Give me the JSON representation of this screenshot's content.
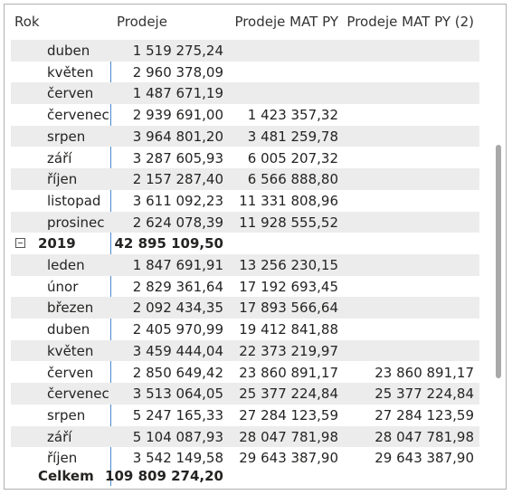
{
  "table": {
    "columns": [
      "Rok",
      "Prodeje",
      "Prodeje MAT PY",
      "Prodeje MAT PY (2)"
    ],
    "rows": [
      {
        "label": "duben",
        "values": [
          "1 519 275,24",
          null,
          null
        ]
      },
      {
        "label": "květen",
        "values": [
          "2 960 378,09",
          null,
          null
        ]
      },
      {
        "label": "červen",
        "values": [
          "1 487 671,19",
          null,
          null
        ]
      },
      {
        "label": "červenec",
        "values": [
          "2 939 691,00",
          "1 423 357,32",
          null
        ]
      },
      {
        "label": "srpen",
        "values": [
          "3 964 801,20",
          "3 481 259,78",
          null
        ]
      },
      {
        "label": "září",
        "values": [
          "3 287 605,93",
          "6 005 207,32",
          null
        ]
      },
      {
        "label": "říjen",
        "values": [
          "2 157 287,40",
          "6 566 888,80",
          null
        ]
      },
      {
        "label": "listopad",
        "values": [
          "3 611 092,23",
          "11 331 808,96",
          null
        ]
      },
      {
        "label": "prosinec",
        "values": [
          "2 624 078,39",
          "11 928 555,52",
          null
        ]
      },
      {
        "label": "2019",
        "group": true,
        "values": [
          "42 895 109,50",
          null,
          null
        ]
      },
      {
        "label": "leden",
        "values": [
          "1 847 691,91",
          "13 256 230,15",
          null
        ]
      },
      {
        "label": "únor",
        "values": [
          "2 829 361,64",
          "17 192 693,45",
          null
        ]
      },
      {
        "label": "březen",
        "values": [
          "2 092 434,35",
          "17 893 566,64",
          null
        ]
      },
      {
        "label": "duben",
        "values": [
          "2 405 970,99",
          "19 412 841,88",
          null
        ]
      },
      {
        "label": "květen",
        "values": [
          "3 459 444,04",
          "22 373 219,97",
          null
        ]
      },
      {
        "label": "červen",
        "values": [
          "2 850 649,42",
          "23 860 891,17",
          "23 860 891,17"
        ]
      },
      {
        "label": "červenec",
        "values": [
          "3 513 064,05",
          "25 377 224,84",
          "25 377 224,84"
        ]
      },
      {
        "label": "srpen",
        "values": [
          "5 247 165,33",
          "27 284 123,59",
          "27 284 123,59"
        ]
      },
      {
        "label": "září",
        "values": [
          "5 104 087,93",
          "28 047 781,98",
          "28 047 781,98"
        ]
      },
      {
        "label": "říjen",
        "values": [
          "3 542 149,58",
          "29 643 387,90",
          "29 643 387,90"
        ]
      }
    ],
    "total": {
      "label": "Celkem",
      "values": [
        "109 809 274,20",
        null,
        null
      ]
    }
  }
}
